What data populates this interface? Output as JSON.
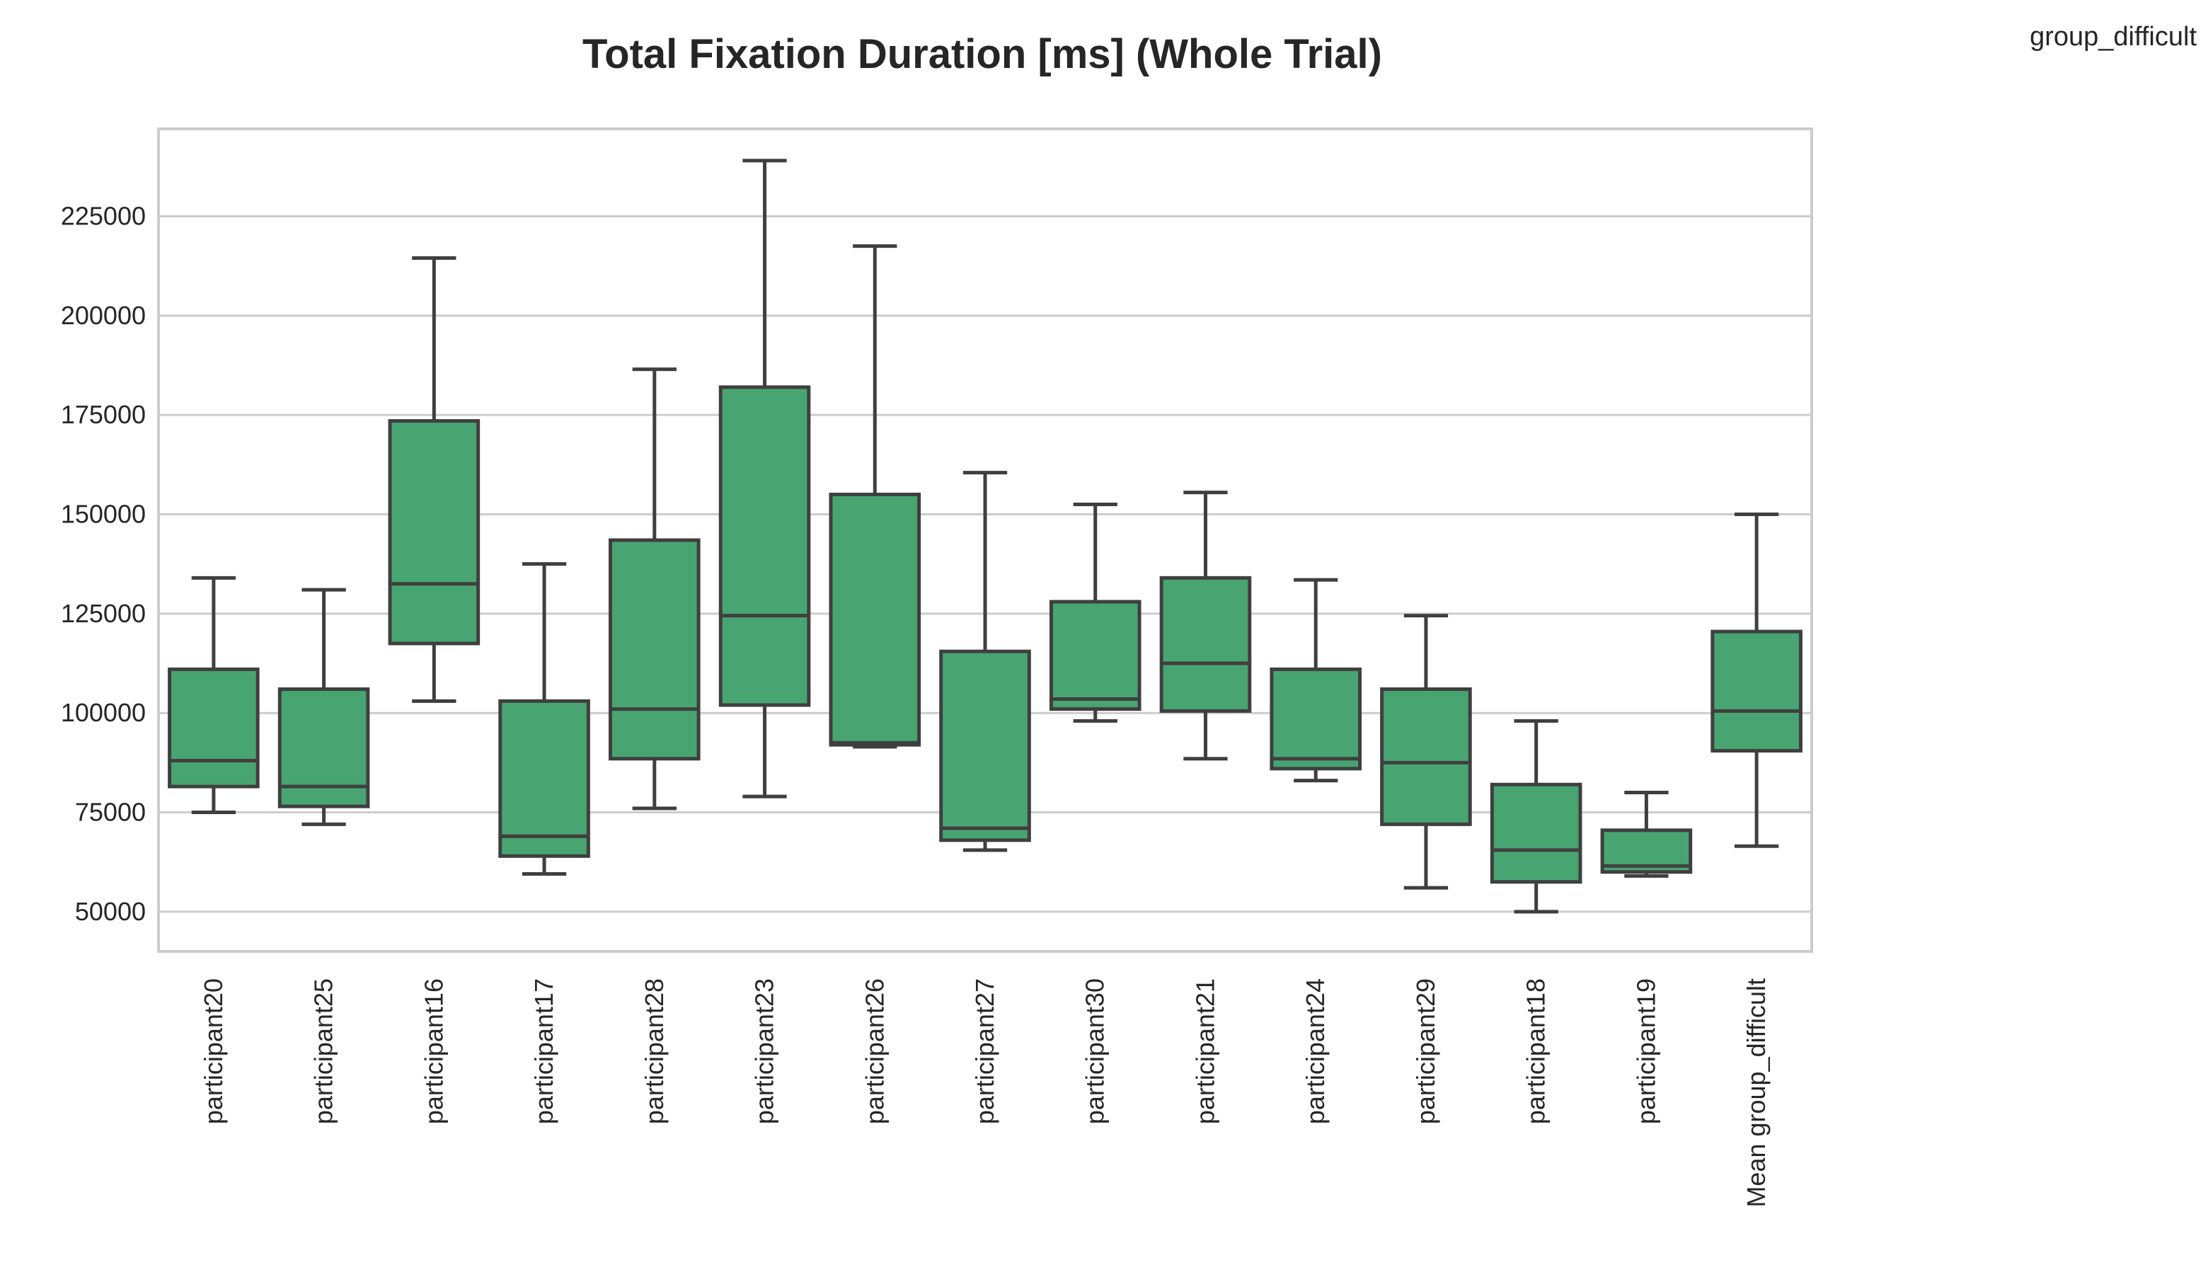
{
  "chart_data": {
    "type": "box",
    "title": "Total Fixation Duration [ms] (Whole Trial)",
    "legend_label": "group_difficult",
    "legend_position": "top-right",
    "xlabel": "",
    "ylabel": "",
    "ylim": [
      40000,
      247000
    ],
    "yticks": [
      50000,
      75000,
      100000,
      125000,
      150000,
      175000,
      200000,
      225000
    ],
    "ytick_labels": [
      "50000",
      "75000",
      "100000",
      "125000",
      "150000",
      "175000",
      "200000",
      "225000"
    ],
    "grid": "horizontal",
    "box_color": "#48a572",
    "line_color": "#3f3f3f",
    "categories": [
      "participant20",
      "participant25",
      "participant16",
      "participant17",
      "participant28",
      "participant23",
      "participant26",
      "participant27",
      "participant30",
      "participant21",
      "participant24",
      "participant29",
      "participant18",
      "participant19",
      "Mean group_difficult"
    ],
    "boxes": [
      {
        "whisker_low": 75000,
        "q1": 81500,
        "median": 88000,
        "q3": 111000,
        "whisker_high": 134000
      },
      {
        "whisker_low": 72000,
        "q1": 76500,
        "median": 81500,
        "q3": 106000,
        "whisker_high": 131000
      },
      {
        "whisker_low": 103000,
        "q1": 117500,
        "median": 132500,
        "q3": 173500,
        "whisker_high": 214500
      },
      {
        "whisker_low": 59500,
        "q1": 64000,
        "median": 69000,
        "q3": 103000,
        "whisker_high": 137500
      },
      {
        "whisker_low": 76000,
        "q1": 88500,
        "median": 101000,
        "q3": 143500,
        "whisker_high": 186500
      },
      {
        "whisker_low": 79000,
        "q1": 102000,
        "median": 124500,
        "q3": 182000,
        "whisker_high": 239000
      },
      {
        "whisker_low": 91500,
        "q1": 92000,
        "median": 92500,
        "q3": 155000,
        "whisker_high": 217500
      },
      {
        "whisker_low": 65500,
        "q1": 68000,
        "median": 71000,
        "q3": 115500,
        "whisker_high": 160500
      },
      {
        "whisker_low": 98000,
        "q1": 101000,
        "median": 103500,
        "q3": 128000,
        "whisker_high": 152500
      },
      {
        "whisker_low": 88500,
        "q1": 100500,
        "median": 112500,
        "q3": 134000,
        "whisker_high": 155500
      },
      {
        "whisker_low": 83000,
        "q1": 86000,
        "median": 88500,
        "q3": 111000,
        "whisker_high": 133500
      },
      {
        "whisker_low": 56000,
        "q1": 72000,
        "median": 87500,
        "q3": 106000,
        "whisker_high": 124500
      },
      {
        "whisker_low": 50000,
        "q1": 57500,
        "median": 65500,
        "q3": 82000,
        "whisker_high": 98000
      },
      {
        "whisker_low": 59000,
        "q1": 60000,
        "median": 61500,
        "q3": 70500,
        "whisker_high": 80000
      },
      {
        "whisker_low": 66500,
        "q1": 90500,
        "median": 100500,
        "q3": 120500,
        "whisker_high": 150000
      }
    ]
  }
}
